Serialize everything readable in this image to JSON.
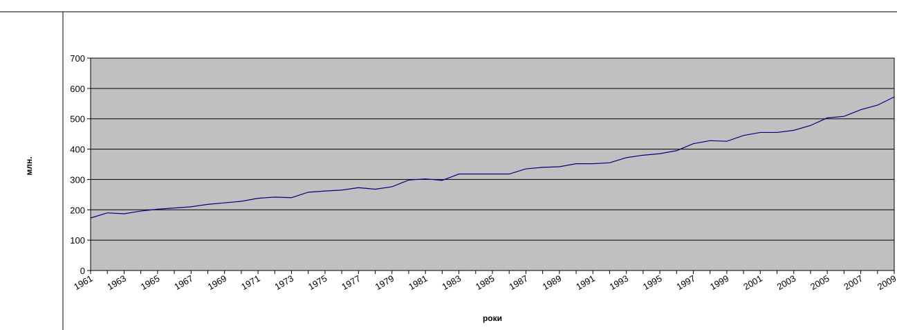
{
  "chart_data": {
    "type": "line",
    "x_label": "роки",
    "y_label": "млн.",
    "categories": [
      "1961",
      null,
      "1963",
      null,
      "1965",
      null,
      "1967",
      null,
      "1969",
      null,
      "1971",
      null,
      "1973",
      null,
      "1975",
      null,
      "1977",
      null,
      "1979",
      null,
      "1981",
      null,
      "1983",
      null,
      "1985",
      null,
      "1987",
      null,
      "1989",
      null,
      "1991",
      null,
      "1993",
      null,
      "1995",
      null,
      "1997",
      null,
      "1999",
      null,
      "2001",
      null,
      "2003",
      null,
      "2005",
      null,
      "2007",
      null,
      "2009"
    ],
    "series": [
      {
        "name": "",
        "color": "#000080",
        "values": [
          173,
          190,
          187,
          196,
          202,
          206,
          210,
          218,
          223,
          228,
          238,
          242,
          240,
          258,
          262,
          265,
          273,
          268,
          276,
          298,
          302,
          297,
          318,
          318,
          318,
          318,
          335,
          340,
          342,
          352,
          352,
          355,
          372,
          380,
          385,
          395,
          418,
          428,
          426,
          445,
          455,
          455,
          462,
          478,
          503,
          508,
          530,
          545,
          572
        ]
      }
    ],
    "ylim": [
      0,
      700
    ],
    "yticks": [
      0,
      100,
      200,
      300,
      400,
      500,
      600,
      700
    ],
    "grid": true,
    "background": "#c0c0c0"
  }
}
